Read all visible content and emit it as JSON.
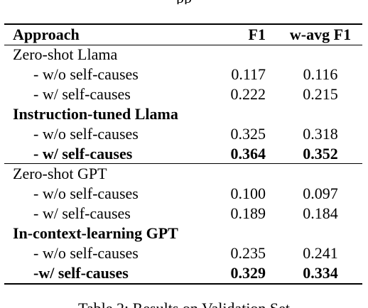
{
  "top_fragment": "pp",
  "table": {
    "headers": {
      "approach": "Approach",
      "f1": "F1",
      "wavg": "w-avg F1"
    },
    "rows": [
      {
        "approach": "Zero-shot Llama",
        "f1": "",
        "wavg": "",
        "bold": false,
        "indent": false
      },
      {
        "approach": "- w/o self-causes",
        "f1": "0.117",
        "wavg": "0.116",
        "bold": false,
        "indent": true
      },
      {
        "approach": "- w/ self-causes",
        "f1": "0.222",
        "wavg": "0.215",
        "bold": false,
        "indent": true
      },
      {
        "approach": "Instruction-tuned Llama",
        "f1": "",
        "wavg": "",
        "bold": true,
        "indent": false
      },
      {
        "approach": "- w/o self-causes",
        "f1": "0.325",
        "wavg": "0.318",
        "bold": false,
        "indent": true
      },
      {
        "approach": "- w/ self-causes",
        "f1": "0.364",
        "wavg": "0.352",
        "bold": true,
        "indent": true
      },
      {
        "approach": "Zero-shot GPT",
        "f1": "",
        "wavg": "",
        "bold": false,
        "indent": false
      },
      {
        "approach": "- w/o self-causes",
        "f1": "0.100",
        "wavg": "0.097",
        "bold": false,
        "indent": true
      },
      {
        "approach": "- w/ self-causes",
        "f1": "0.189",
        "wavg": "0.184",
        "bold": false,
        "indent": true
      },
      {
        "approach": "In-context-learning GPT",
        "f1": "",
        "wavg": "",
        "bold": true,
        "indent": false
      },
      {
        "approach": "- w/o self-causes",
        "f1": "0.235",
        "wavg": "0.241",
        "bold": false,
        "indent": true
      },
      {
        "approach": "-w/ self-causes",
        "f1": "0.329",
        "wavg": "0.334",
        "bold": true,
        "indent": true
      }
    ]
  },
  "caption": "Table 2: Results on Validation Set"
}
